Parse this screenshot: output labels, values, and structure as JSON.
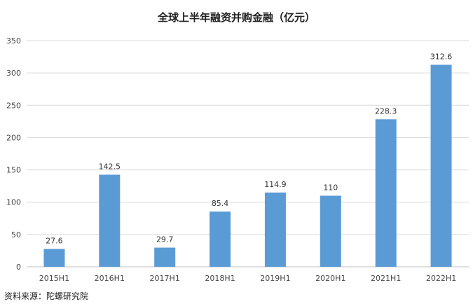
{
  "chart_data": {
    "type": "bar",
    "title": "全球上半年融资并购金融（亿元）",
    "categories": [
      "2015H1",
      "2016H1",
      "2017H1",
      "2018H1",
      "2019H1",
      "2020H1",
      "2021H1",
      "2022H1"
    ],
    "values": [
      27.6,
      142.5,
      29.7,
      85.4,
      114.9,
      110,
      228.3,
      312.6
    ],
    "value_labels": [
      "27.6",
      "142.5",
      "29.7",
      "85.4",
      "114.9",
      "110",
      "228.3",
      "312.6"
    ],
    "ylim": [
      0,
      350
    ],
    "yticks": [
      0,
      50,
      100,
      150,
      200,
      250,
      300,
      350
    ],
    "xlabel": "",
    "ylabel": "",
    "grid": true,
    "bar_color": "#5B9BD5",
    "grid_color": "#D9D9D9"
  },
  "source": "资料来源：陀螺研究院"
}
